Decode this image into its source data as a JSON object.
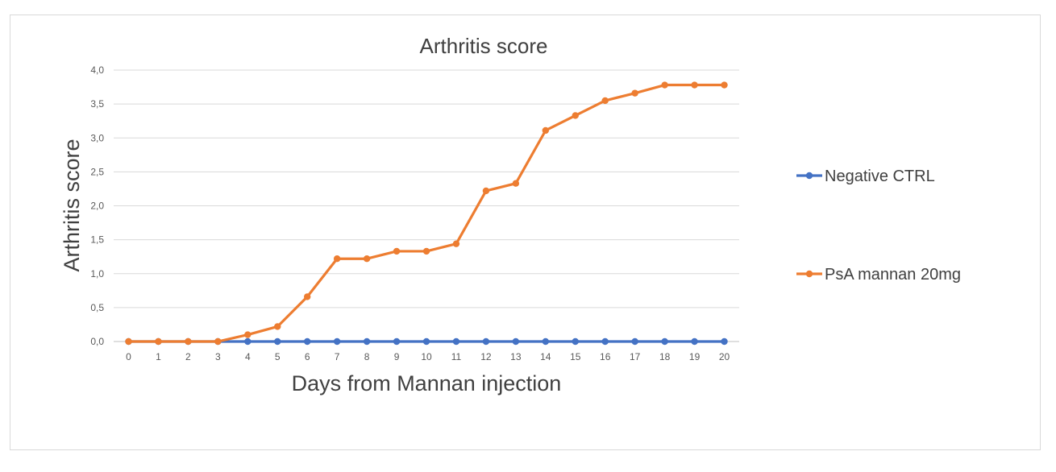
{
  "chart_data": {
    "type": "line",
    "title": "Arthritis score",
    "xlabel": "Days from Mannan injection",
    "ylabel": "Arthritis score",
    "x": [
      0,
      1,
      2,
      3,
      4,
      5,
      6,
      7,
      8,
      9,
      10,
      11,
      12,
      13,
      14,
      15,
      16,
      17,
      18,
      19,
      20
    ],
    "ylim": [
      0,
      4
    ],
    "yticks": [
      "0,0",
      "0,5",
      "1,0",
      "1,5",
      "2,0",
      "2,5",
      "3,0",
      "3,5",
      "4,0"
    ],
    "grid": true,
    "legend": "right",
    "series": [
      {
        "name": "Negative CTRL",
        "color": "#4472c4",
        "values": [
          0,
          0,
          0,
          0,
          0,
          0,
          0,
          0,
          0,
          0,
          0,
          0,
          0,
          0,
          0,
          0,
          0,
          0,
          0,
          0,
          0
        ]
      },
      {
        "name": "PsA mannan 20mg",
        "color": "#ed7d31",
        "values": [
          0,
          0,
          0,
          0,
          0.1,
          0.22,
          0.66,
          1.22,
          1.22,
          1.33,
          1.33,
          1.44,
          2.22,
          2.33,
          3.11,
          3.33,
          3.55,
          3.66,
          3.78,
          3.78,
          3.78
        ]
      }
    ]
  }
}
